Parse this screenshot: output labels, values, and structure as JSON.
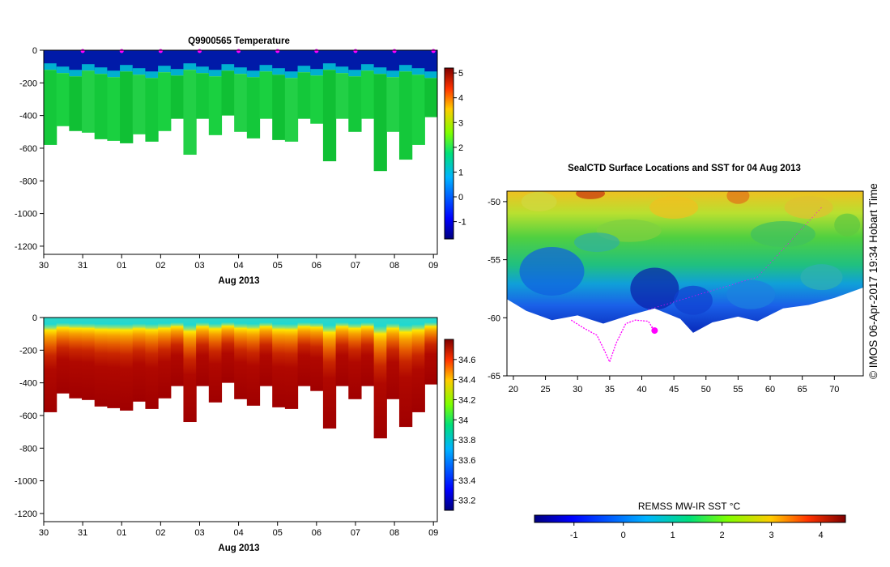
{
  "chart_data": [
    {
      "id": "temperature",
      "type": "heatmap",
      "title": "Q9900565  Temperature",
      "xlabel": "Aug 2013",
      "x_tick_labels": [
        "30",
        "31",
        "01",
        "02",
        "03",
        "04",
        "05",
        "06",
        "07",
        "08",
        "09"
      ],
      "ylim": [
        -1250,
        0
      ],
      "y_ticks": [
        0,
        -200,
        -400,
        -600,
        -800,
        -1000,
        -1200
      ],
      "colorbar": {
        "min": -1.7,
        "max": 5.2,
        "ticks": [
          -1,
          0,
          1,
          2,
          3,
          4,
          5
        ]
      },
      "profile_max_depth_m": [
        -580,
        -465,
        -495,
        -505,
        -545,
        -555,
        -570,
        -515,
        -560,
        -495,
        -420,
        -640,
        -420,
        -520,
        -400,
        -500,
        -540,
        -420,
        -550,
        -560,
        -420,
        -450,
        -680,
        -420,
        -500,
        -420,
        -740,
        -500,
        -670,
        -580,
        -410
      ],
      "surface_layer": {
        "surface_value_c": -1.7,
        "thermocline_depth_m": -125,
        "deep_value_c": 1.6
      },
      "surface_markers_day_index": [
        1,
        2,
        3,
        4,
        5,
        6,
        7,
        8,
        9,
        10
      ]
    },
    {
      "id": "salinity",
      "type": "heatmap",
      "title": "",
      "xlabel": "Aug 2013",
      "x_tick_labels": [
        "30",
        "31",
        "01",
        "02",
        "03",
        "04",
        "05",
        "06",
        "07",
        "08",
        "09"
      ],
      "ylim": [
        -1250,
        0
      ],
      "y_ticks": [
        0,
        -200,
        -400,
        -600,
        -800,
        -1000,
        -1200
      ],
      "colorbar": {
        "min": 33.1,
        "max": 34.8,
        "ticks": [
          "33.2",
          "33.4",
          "33.6",
          "33.8",
          "34",
          "34.2",
          "34.4",
          "34.6"
        ]
      },
      "profile_max_depth_m": [
        -580,
        -465,
        -495,
        -505,
        -545,
        -555,
        -570,
        -515,
        -560,
        -495,
        -420,
        -640,
        -420,
        -520,
        -400,
        -500,
        -540,
        -420,
        -550,
        -560,
        -420,
        -450,
        -680,
        -420,
        -500,
        -420,
        -740,
        -500,
        -670,
        -580,
        -410
      ],
      "surface_layer": {
        "surface_value_psu": 33.65,
        "halocline_depth_m": -130,
        "deep_value_psu": 34.72
      }
    },
    {
      "id": "sst_map",
      "type": "heatmap",
      "title": "SealCTD Surface Locations and SST for 04 Aug 2013",
      "xlabel": "",
      "x_ticks": [
        20,
        25,
        30,
        35,
        40,
        45,
        50,
        55,
        60,
        65,
        70
      ],
      "y_ticks": [
        -50,
        -55,
        -60,
        -65
      ],
      "xlim": [
        19,
        74.5
      ],
      "ylim": [
        -65,
        -49.1
      ],
      "colorbar": {
        "label": "REMSS MW-IR SST °C",
        "min": -1.8,
        "max": 4.5,
        "ticks": [
          -1,
          0,
          1,
          2,
          3,
          4
        ]
      }
    }
  ],
  "footer": {
    "credit": "© IMOS 06-Apr-2017 19:34 Hobart Time"
  },
  "colors": {
    "jet_low": "#00007f",
    "jet_mid": "#00d41c",
    "jet_high": "#7f0000",
    "track": "#ff00ff",
    "background": "#ffffff"
  }
}
